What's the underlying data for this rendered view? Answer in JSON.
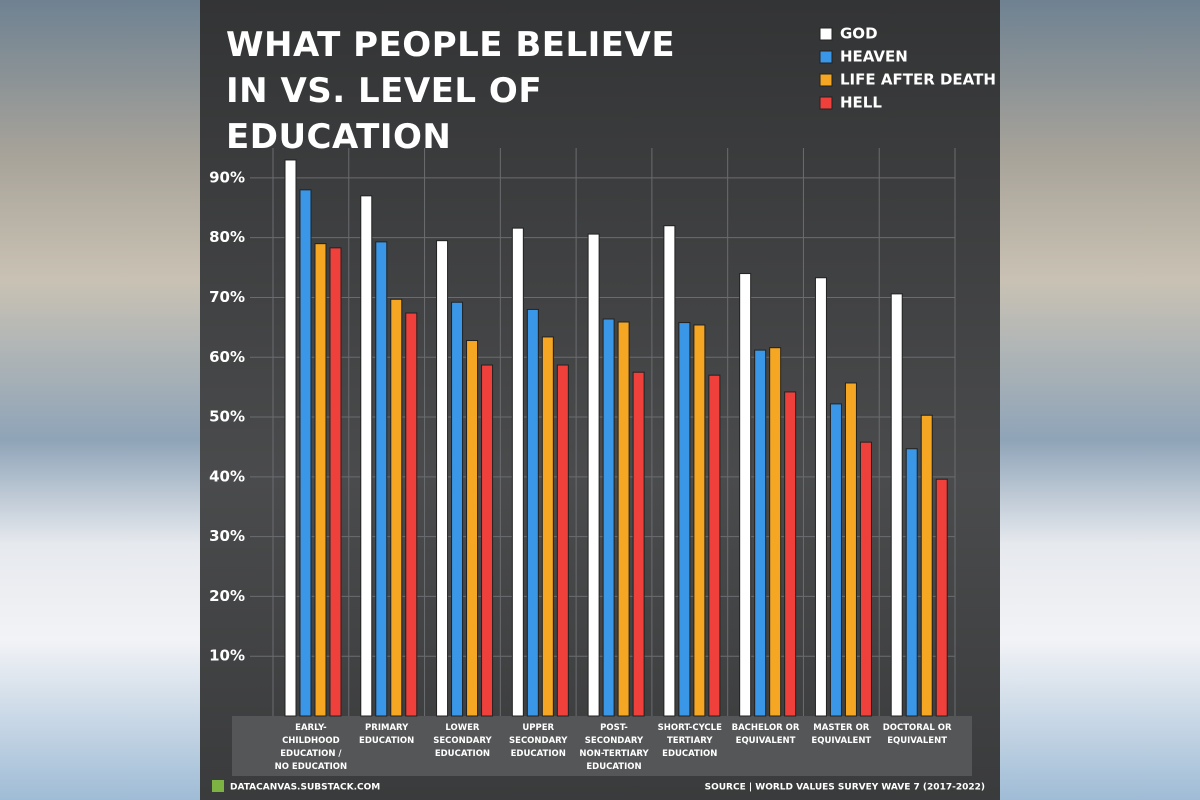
{
  "chart_data": {
    "type": "bar",
    "title": "WHAT PEOPLE BELIEVE IN VS. LEVEL OF EDUCATION",
    "categories": [
      "EARLY-CHILDHOOD EDUCATION / NO EDUCATION",
      "PRIMARY EDUCATION",
      "LOWER SECONDARY EDUCATION",
      "UPPER SECONDARY EDUCATION",
      "POST-SECONDARY NON-TERTIARY EDUCATION",
      "SHORT-CYCLE TERTIARY EDUCATION",
      "BACHELOR OR EQUIVALENT",
      "MASTER OR EQUIVALENT",
      "DOCTORAL OR EQUIVALENT"
    ],
    "series": [
      {
        "name": "GOD",
        "color": "#ffffff",
        "values": [
          93,
          87,
          79.5,
          81.6,
          80.6,
          82,
          74,
          73.3,
          70.6
        ]
      },
      {
        "name": "HEAVEN",
        "color": "#3a96e6",
        "values": [
          88,
          79.3,
          69.2,
          68,
          66.4,
          65.8,
          61.2,
          52.2,
          44.7
        ]
      },
      {
        "name": "LIFE AFTER DEATH",
        "color": "#f5a623",
        "values": [
          79,
          69.7,
          62.8,
          63.4,
          65.9,
          65.4,
          61.6,
          55.7,
          50.3
        ]
      },
      {
        "name": "HELL",
        "color": "#f0403c",
        "values": [
          78.3,
          67.4,
          58.7,
          58.7,
          57.5,
          57,
          54.2,
          45.8,
          39.6
        ]
      }
    ],
    "ylim": [
      0,
      95
    ],
    "yticks": [
      {
        "value": 10,
        "label": "10%"
      },
      {
        "value": 20,
        "label": "20%"
      },
      {
        "value": 30,
        "label": "30%"
      },
      {
        "value": 40,
        "label": "40%"
      },
      {
        "value": 50,
        "label": "50%"
      },
      {
        "value": 60,
        "label": "60%"
      },
      {
        "value": 70,
        "label": "70%"
      },
      {
        "value": 80,
        "label": "80%"
      },
      {
        "value": 90,
        "label": "90%"
      }
    ],
    "grid": true,
    "legend": "top-right",
    "footer_left": "DATACANVAS.SUBSTACK.COM",
    "footer_right": "SOURCE | WORLD VALUES SURVEY WAVE 7 (2017-2022)"
  }
}
